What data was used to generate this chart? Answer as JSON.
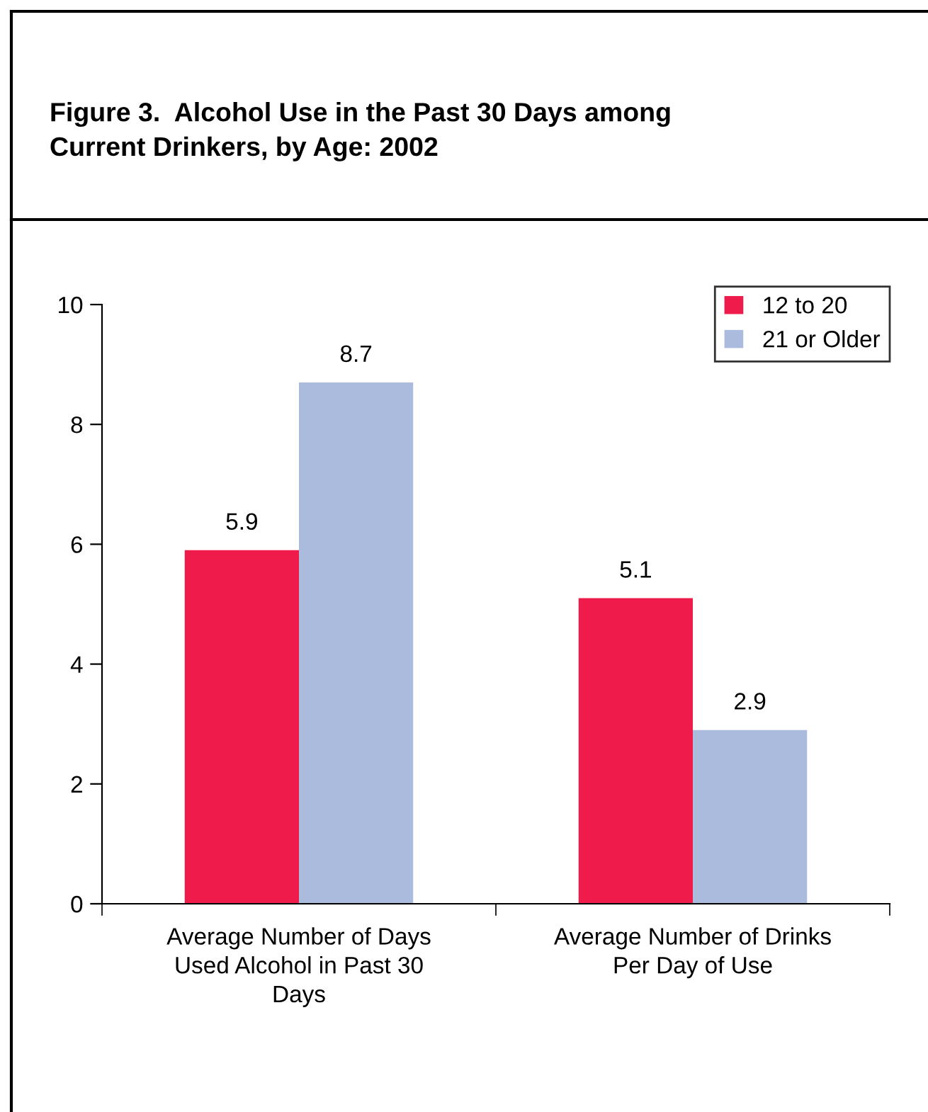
{
  "chart_data": {
    "type": "bar",
    "title": "Figure 3.  Alcohol Use in the Past 30 Days among\nCurrent Drinkers, by Age: 2002",
    "categories": [
      "Average Number of Days\nUsed Alcohol in Past 30\nDays",
      "Average Number of Drinks\nPer Day of Use"
    ],
    "series": [
      {
        "name": "12 to 20",
        "color": "#ee1b4b",
        "values": [
          5.9,
          5.1
        ]
      },
      {
        "name": "21 or Older",
        "color": "#aabbdd",
        "values": [
          8.7,
          2.9
        ]
      }
    ],
    "ylim": [
      0,
      10
    ],
    "yticks": [
      0,
      2,
      4,
      6,
      8,
      10
    ],
    "data_labels": true,
    "legend": "top right",
    "grid": false
  }
}
